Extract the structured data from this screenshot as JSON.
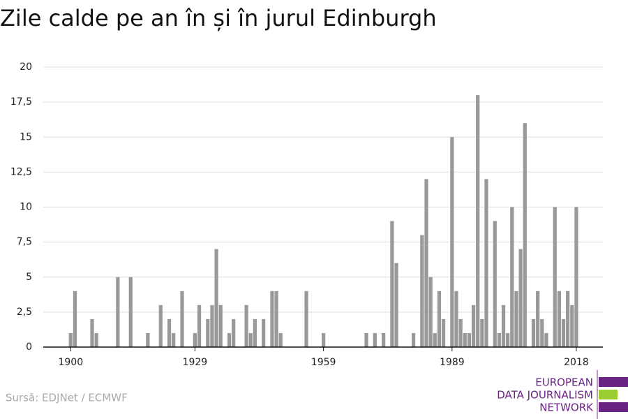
{
  "chart_data": {
    "type": "bar",
    "title": "Zile calde pe an în și în jurul Edinburgh",
    "x": [
      1900,
      1901,
      1905,
      1906,
      1911,
      1914,
      1918,
      1921,
      1923,
      1924,
      1926,
      1929,
      1930,
      1932,
      1933,
      1934,
      1935,
      1937,
      1938,
      1941,
      1942,
      1943,
      1945,
      1947,
      1948,
      1949,
      1955,
      1959,
      1969,
      1971,
      1973,
      1975,
      1976,
      1980,
      1982,
      1983,
      1984,
      1985,
      1986,
      1987,
      1989,
      1990,
      1991,
      1992,
      1993,
      1994,
      1995,
      1996,
      1997,
      1999,
      2000,
      2001,
      2002,
      2003,
      2004,
      2005,
      2006,
      2008,
      2009,
      2010,
      2011,
      2013,
      2014,
      2015,
      2016,
      2017,
      2018
    ],
    "values": [
      1,
      4,
      2,
      1,
      5,
      5,
      1,
      3,
      2,
      1,
      4,
      1,
      3,
      2,
      3,
      7,
      3,
      1,
      2,
      3,
      1,
      2,
      2,
      4,
      4,
      1,
      4,
      1,
      1,
      1,
      1,
      9,
      6,
      1,
      8,
      12,
      5,
      1,
      4,
      2,
      15,
      4,
      2,
      1,
      1,
      3,
      18,
      2,
      12,
      9,
      1,
      3,
      1,
      10,
      4,
      7,
      16,
      2,
      4,
      2,
      1,
      10,
      4,
      2,
      4,
      3,
      10
    ],
    "color": "#999999",
    "xlim": [
      1893.6,
      2024.2
    ],
    "xticks": [
      1900,
      1929,
      1959,
      1989,
      2018
    ],
    "ylim": [
      0,
      20
    ],
    "yticks": [
      0,
      {
        "value": 2.5,
        "label": "2,5"
      },
      5,
      {
        "value": 7.5,
        "label": "7,5"
      },
      10,
      {
        "value": 12.5,
        "label": "12,5"
      },
      15,
      {
        "value": 17.5,
        "label": "17,5"
      },
      20
    ],
    "grid": true,
    "source": "Sursă: EDJNet / ECMWF",
    "logo": [
      "EUROPEAN",
      "DATA JOURNALISM",
      "NETWORK"
    ]
  }
}
